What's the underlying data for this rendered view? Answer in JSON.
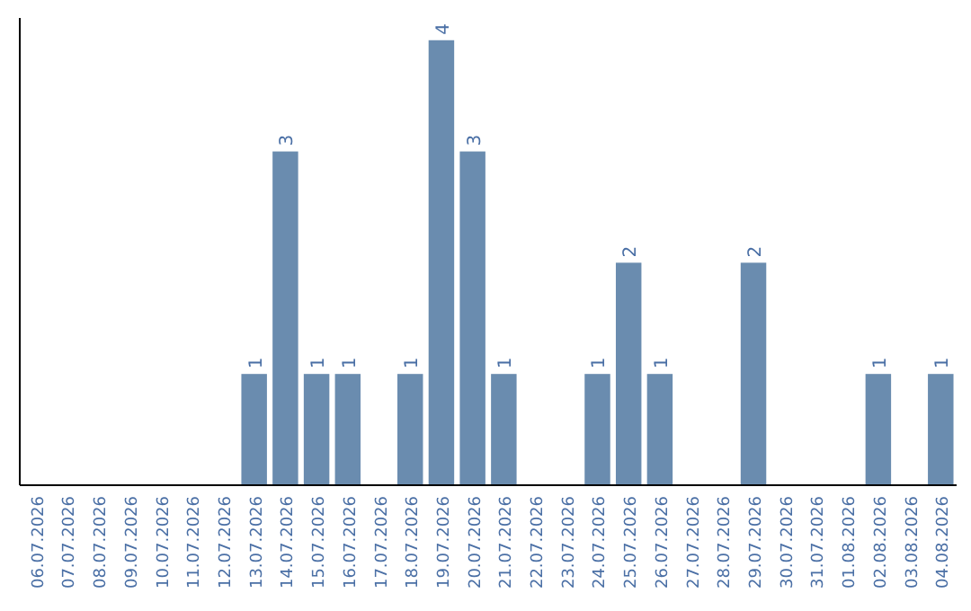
{
  "chart_data": {
    "type": "bar",
    "categories": [
      "06.07.2026",
      "07.07.2026",
      "08.07.2026",
      "09.07.2026",
      "10.07.2026",
      "11.07.2026",
      "12.07.2026",
      "13.07.2026",
      "14.07.2026",
      "15.07.2026",
      "16.07.2026",
      "17.07.2026",
      "18.07.2026",
      "19.07.2026",
      "20.07.2026",
      "21.07.2026",
      "22.07.2026",
      "23.07.2026",
      "24.07.2026",
      "25.07.2026",
      "26.07.2026",
      "27.07.2026",
      "28.07.2026",
      "29.07.2026",
      "30.07.2026",
      "31.07.2026",
      "01.08.2026",
      "02.08.2026",
      "03.08.2026",
      "04.08.2026"
    ],
    "values": [
      0,
      0,
      0,
      0,
      0,
      0,
      0,
      1,
      3,
      1,
      1,
      0,
      1,
      4,
      3,
      1,
      0,
      0,
      1,
      2,
      1,
      0,
      0,
      2,
      0,
      0,
      0,
      1,
      0,
      1
    ],
    "value_labels": [
      null,
      null,
      null,
      null,
      null,
      null,
      null,
      "1",
      "3",
      "1",
      "1",
      null,
      "1",
      "4",
      "3",
      "1",
      null,
      null,
      "1",
      "2",
      "1",
      null,
      null,
      "2",
      null,
      null,
      null,
      "1",
      null,
      "1"
    ],
    "color": "#6a8caf",
    "ylim": [
      0,
      4.2
    ],
    "tick_labels": "x"
  }
}
